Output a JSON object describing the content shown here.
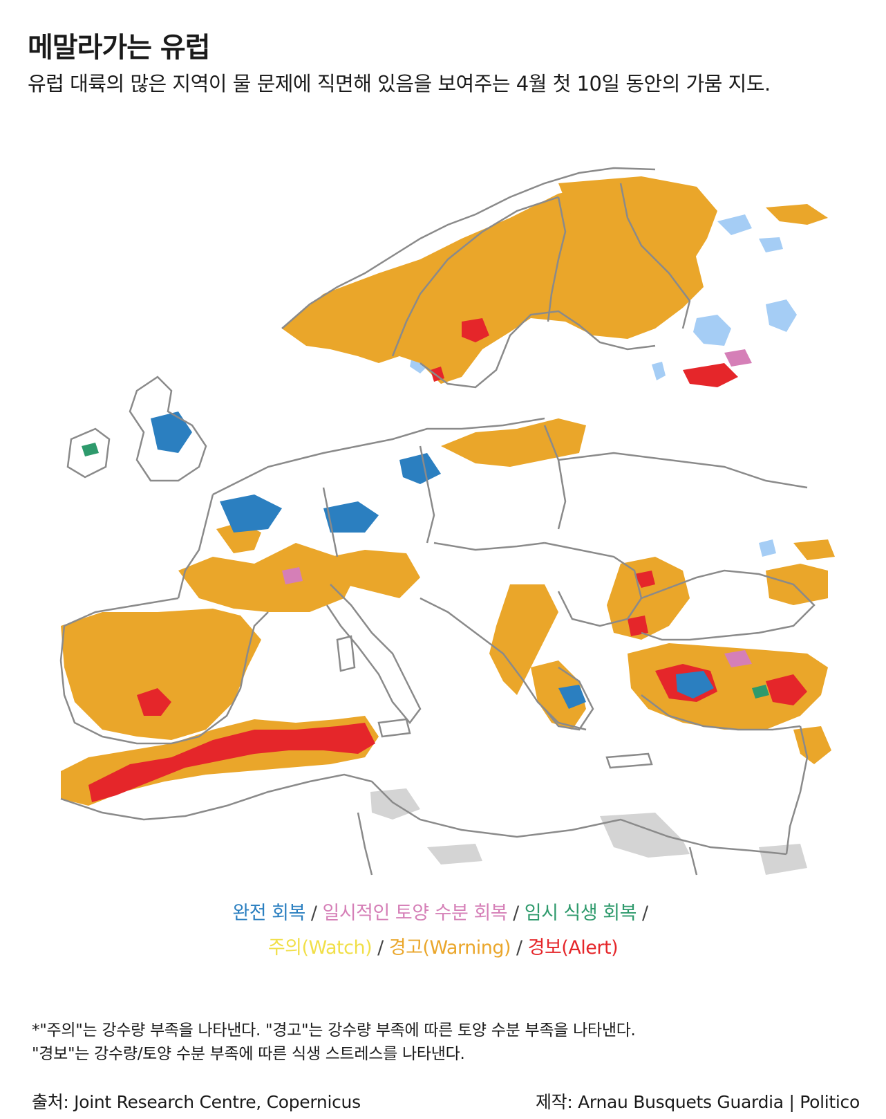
{
  "title": "메말라가는 유럽",
  "subtitle": "유럽 대륙의 많은 지역이 물 문제에 직면해 있음을 보여주는 4월 첫 10일 동안의 가뭄 지도.",
  "legend": {
    "separator": "/",
    "items": [
      {
        "label": "완전 회복",
        "color": "#2b7fc0"
      },
      {
        "label": "일시적인 토양 수분 회복",
        "color": "#d57fb7"
      },
      {
        "label": "임시 식생 회복",
        "color": "#2e9a6c"
      },
      {
        "label": "주의(Watch)",
        "color": "#f1df48"
      },
      {
        "label": "경고(Warning)",
        "color": "#eaa62a"
      },
      {
        "label": "경보(Alert)",
        "color": "#e5262a"
      }
    ]
  },
  "map": {
    "colors": {
      "land": "#ffffff",
      "water_body": "#a5cdf5",
      "borders": "#8a8a8a",
      "no_data": "#d4d4d4"
    }
  },
  "notes": [
    "*\"주의\"는 강수량 부족을 나타낸다. \"경고\"는 강수량 부족에 따른 토양 수분 부족을 나타낸다.",
    "\"경보\"는 강수량/토양 수분 부족에 따른 식생 스트레스를 나타낸다."
  ],
  "source": "출처: Joint Research Centre, Copernicus",
  "credit": "제작: Arnau Busquets Guardia | Politico"
}
